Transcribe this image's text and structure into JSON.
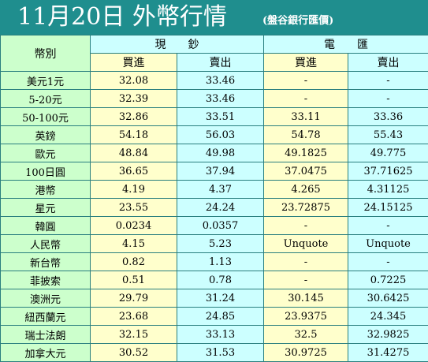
{
  "title": "11月20日 外幣行情",
  "subtitle": "(盤谷銀行匯價)",
  "header": {
    "currency_label": "幣別",
    "cash": "現　　鈔",
    "transfer": "電　　匯",
    "buy": "買進",
    "sell": "賣出"
  },
  "rows": [
    {
      "name": "美元1元",
      "cash_buy": "32.08",
      "cash_sell": "33.46",
      "tt_buy": "-",
      "tt_sell": "-"
    },
    {
      "name": "5-20元",
      "cash_buy": "32.39",
      "cash_sell": "33.46",
      "tt_buy": "-",
      "tt_sell": "-"
    },
    {
      "name": "50-100元",
      "cash_buy": "32.86",
      "cash_sell": "33.51",
      "tt_buy": "33.11",
      "tt_sell": "33.36"
    },
    {
      "name": "英鎊",
      "cash_buy": "54.18",
      "cash_sell": "56.03",
      "tt_buy": "54.78",
      "tt_sell": "55.43"
    },
    {
      "name": "歐元",
      "cash_buy": "48.84",
      "cash_sell": "49.98",
      "tt_buy": "49.1825",
      "tt_sell": "49.775"
    },
    {
      "name": "100日圓",
      "cash_buy": "36.65",
      "cash_sell": "37.94",
      "tt_buy": "37.0475",
      "tt_sell": "37.71625"
    },
    {
      "name": "港幣",
      "cash_buy": "4.19",
      "cash_sell": "4.37",
      "tt_buy": "4.265",
      "tt_sell": "4.31125"
    },
    {
      "name": "星元",
      "cash_buy": "23.55",
      "cash_sell": "24.24",
      "tt_buy": "23.72875",
      "tt_sell": "24.15125"
    },
    {
      "name": "韓圓",
      "cash_buy": "0.0234",
      "cash_sell": "0.0357",
      "tt_buy": "-",
      "tt_sell": "-"
    },
    {
      "name": "人民幣",
      "cash_buy": "4.15",
      "cash_sell": "5.23",
      "tt_buy": "Unquote",
      "tt_sell": "Unquote"
    },
    {
      "name": "新台幣",
      "cash_buy": "0.82",
      "cash_sell": "1.13",
      "tt_buy": "-",
      "tt_sell": "-"
    },
    {
      "name": "菲披索",
      "cash_buy": "0.51",
      "cash_sell": "0.78",
      "tt_buy": "-",
      "tt_sell": "0.7225"
    },
    {
      "name": "澳洲元",
      "cash_buy": "29.79",
      "cash_sell": "31.24",
      "tt_buy": "30.145",
      "tt_sell": "30.6425"
    },
    {
      "name": "紐西蘭元",
      "cash_buy": "23.68",
      "cash_sell": "24.85",
      "tt_buy": "23.9375",
      "tt_sell": "24.345"
    },
    {
      "name": "瑞士法朗",
      "cash_buy": "32.15",
      "cash_sell": "33.13",
      "tt_buy": "32.5",
      "tt_sell": "32.9825"
    },
    {
      "name": "加拿大元",
      "cash_buy": "30.52",
      "cash_sell": "31.53",
      "tt_buy": "30.9725",
      "tt_sell": "31.4275"
    }
  ]
}
